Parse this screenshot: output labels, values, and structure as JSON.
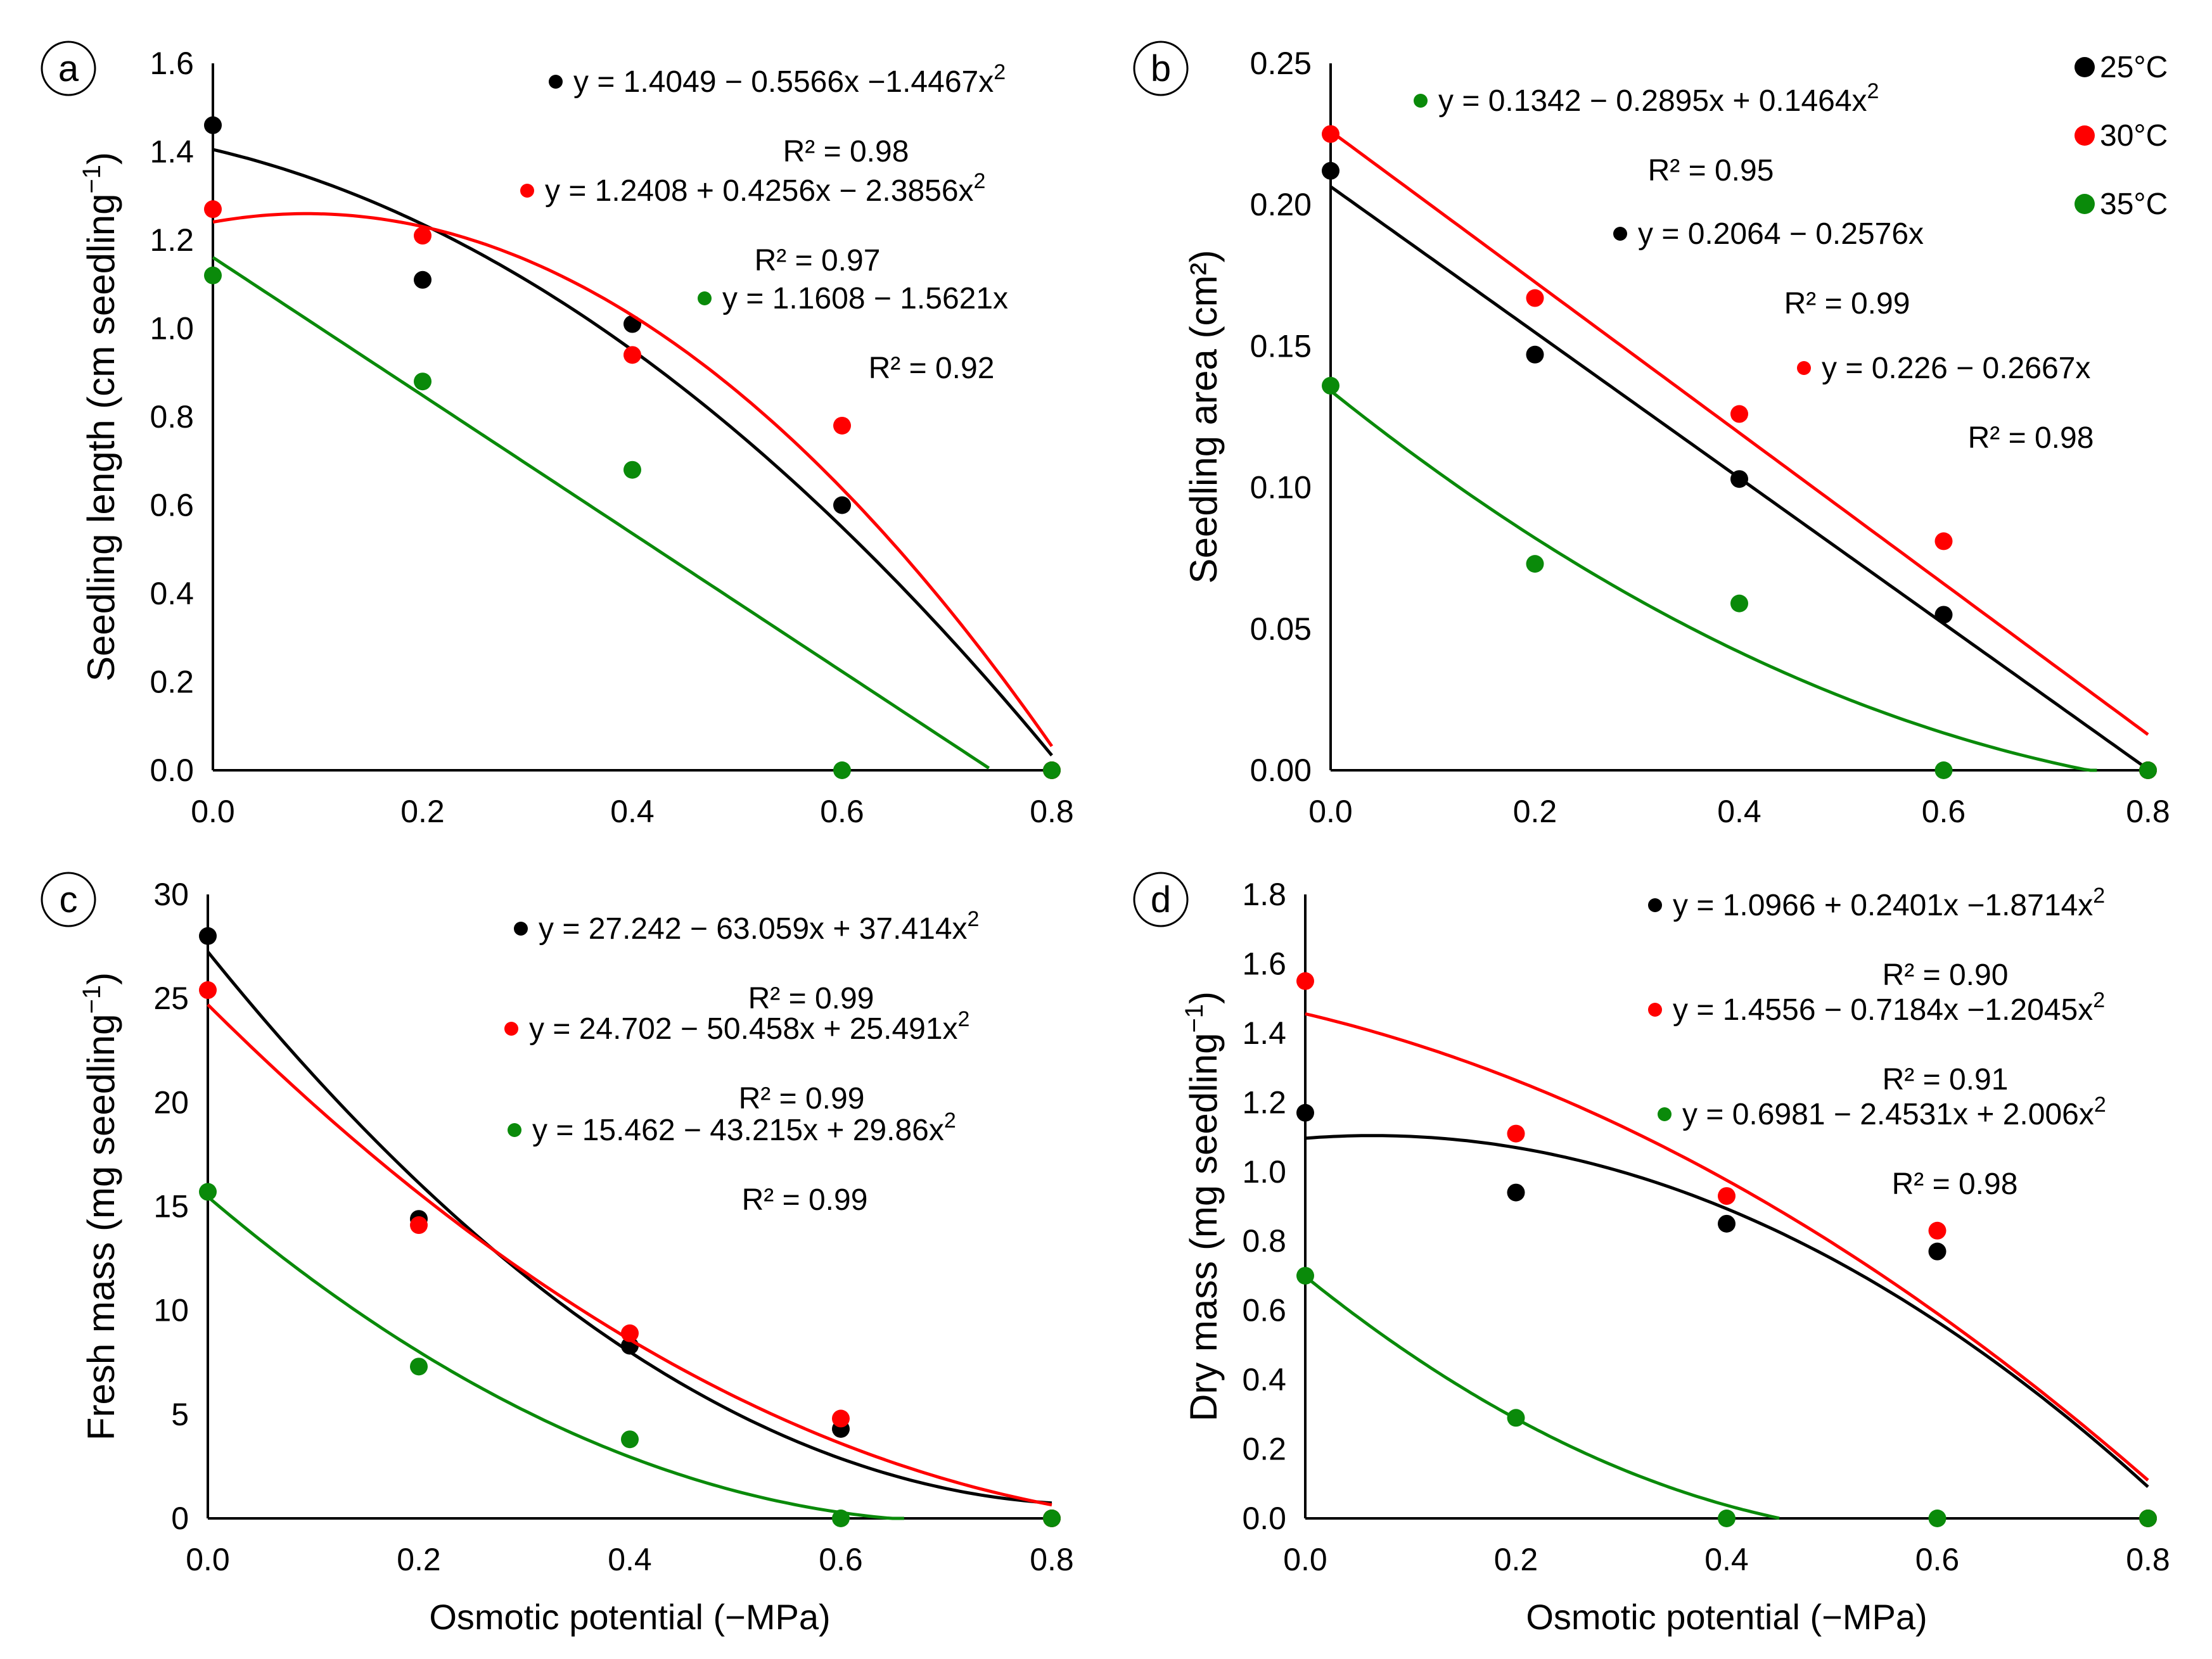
{
  "figure": {
    "colors": {
      "25C": "#000000",
      "30C": "#ff0000",
      "35C": "#0a8a0a"
    },
    "legend": [
      {
        "key": "25C",
        "label": "25°C"
      },
      {
        "key": "30C",
        "label": "30°C"
      },
      {
        "key": "35C",
        "label": "35°C"
      }
    ]
  },
  "chart_data": [
    {
      "panel": "a",
      "type": "scatter",
      "xlabel": "",
      "ylabel": "Seedling length (cm seedling",
      "ylabel_sup": "−1",
      "ylabel_tail": ")",
      "x": [
        0.0,
        0.2,
        0.4,
        0.6,
        0.8
      ],
      "xticks": [
        "0.0",
        "0.2",
        "0.4",
        "0.6",
        "0.8"
      ],
      "xlim": [
        0,
        0.8
      ],
      "ylim": [
        0,
        1.6
      ],
      "yticks": [
        "0.0",
        "0.2",
        "0.4",
        "0.6",
        "0.8",
        "1.0",
        "1.2",
        "1.4",
        "1.6"
      ],
      "series": [
        {
          "name": "25°C",
          "key": "25C",
          "values": [
            1.46,
            1.11,
            1.01,
            0.6,
            0.0
          ],
          "fit": [
            1.4049,
            -0.5566,
            -1.4467
          ],
          "fit_xmax": 0.8,
          "equation": "y = 1.4049 − 0.5566x −1.4467x",
          "eq_sup": "2",
          "r2": "R² = 0.98"
        },
        {
          "name": "30°C",
          "key": "30C",
          "values": [
            1.27,
            1.21,
            0.94,
            0.78,
            0.0
          ],
          "fit": [
            1.2408,
            0.4256,
            -2.3856
          ],
          "fit_xmax": 0.8,
          "equation": "y = 1.2408 + 0.4256x − 2.3856x",
          "eq_sup": "2",
          "r2": "R² = 0.97"
        },
        {
          "name": "35°C",
          "key": "35C",
          "values": [
            1.12,
            0.88,
            0.68,
            0.0,
            0.0
          ],
          "fit": [
            1.1608,
            -1.5621,
            0
          ],
          "fit_xmax": 0.74,
          "equation": "y = 1.1608 − 1.5621x",
          "eq_sup": "",
          "r2": "R² = 0.92"
        }
      ]
    },
    {
      "panel": "b",
      "type": "scatter",
      "xlabel": "",
      "ylabel": "Seedling area (cm²)",
      "ylabel_sup": "",
      "ylabel_tail": "",
      "x": [
        0.0,
        0.2,
        0.4,
        0.6,
        0.8
      ],
      "xticks": [
        "0.0",
        "0.2",
        "0.4",
        "0.6",
        "0.8"
      ],
      "xlim": [
        0,
        0.8
      ],
      "ylim": [
        0,
        0.25
      ],
      "yticks": [
        "0.00",
        "0.05",
        "0.10",
        "0.15",
        "0.20",
        "0.25"
      ],
      "series": [
        {
          "name": "25°C",
          "key": "25C",
          "values": [
            0.212,
            0.147,
            0.103,
            0.055,
            0.0
          ],
          "fit": [
            0.2064,
            -0.2576,
            0
          ],
          "fit_xmax": 0.8,
          "equation": "y = 0.2064 − 0.2576x",
          "eq_sup": "",
          "r2": "R² = 0.99"
        },
        {
          "name": "30°C",
          "key": "30C",
          "values": [
            0.225,
            0.167,
            0.126,
            0.081,
            0.0
          ],
          "fit": [
            0.226,
            -0.2667,
            0
          ],
          "fit_xmax": 0.8,
          "equation": "y = 0.226 − 0.2667x",
          "eq_sup": "",
          "r2": "R² = 0.98"
        },
        {
          "name": "35°C",
          "key": "35C",
          "values": [
            0.136,
            0.073,
            0.059,
            0.0,
            0.0
          ],
          "fit": [
            0.1342,
            -0.2895,
            0.1464
          ],
          "fit_xmax": 0.75,
          "equation": "y = 0.1342 − 0.2895x +  0.1464x",
          "eq_sup": "2",
          "r2": "R² = 0.95"
        }
      ]
    },
    {
      "panel": "c",
      "type": "scatter",
      "xlabel": "Osmotic potential (−MPa)",
      "ylabel": "Fresh mass (mg seedling",
      "ylabel_sup": "−1",
      "ylabel_tail": ")",
      "x": [
        0.0,
        0.2,
        0.4,
        0.6,
        0.8
      ],
      "xticks": [
        "0.0",
        "0.2",
        "0.4",
        "0.6",
        "0.8"
      ],
      "xlim": [
        0,
        0.8
      ],
      "ylim": [
        0,
        30
      ],
      "yticks": [
        "0",
        "5",
        "10",
        "15",
        "20",
        "25",
        "30"
      ],
      "series": [
        {
          "name": "25°C",
          "key": "25C",
          "values": [
            28.0,
            14.4,
            8.3,
            4.3,
            0.0
          ],
          "fit": [
            27.242,
            -63.059,
            37.414
          ],
          "fit_xmax": 0.8,
          "equation": "y = 27.242 − 63.059x + 37.414x",
          "eq_sup": "2",
          "r2": "R² = 0.99"
        },
        {
          "name": "30°C",
          "key": "30C",
          "values": [
            25.4,
            14.1,
            8.9,
            4.8,
            0.0
          ],
          "fit": [
            24.702,
            -50.458,
            25.491
          ],
          "fit_xmax": 0.8,
          "equation": "y = 24.702 − 50.458x + 25.491x",
          "eq_sup": "2",
          "r2": "R² = 0.99"
        },
        {
          "name": "35°C",
          "key": "35C",
          "values": [
            15.7,
            7.3,
            3.8,
            0.0,
            0.0
          ],
          "fit": [
            15.462,
            -43.215,
            29.86
          ],
          "fit_xmax": 0.66,
          "equation": "y = 15.462 − 43.215x + 29.86x",
          "eq_sup": "2",
          "r2": "R² = 0.99"
        }
      ]
    },
    {
      "panel": "d",
      "type": "scatter",
      "xlabel": "Osmotic potential (−MPa)",
      "ylabel": "Dry mass (mg seedling",
      "ylabel_sup": "−1",
      "ylabel_tail": ")",
      "x": [
        0.0,
        0.2,
        0.4,
        0.6,
        0.8
      ],
      "xticks": [
        "0.0",
        "0.2",
        "0.4",
        "0.6",
        "0.8"
      ],
      "xlim": [
        0,
        0.8
      ],
      "ylim": [
        0,
        1.8
      ],
      "yticks": [
        "0.0",
        "0.2",
        "0.4",
        "0.6",
        "0.8",
        "1.0",
        "1.2",
        "1.4",
        "1.6",
        "1.8"
      ],
      "series": [
        {
          "name": "25°C",
          "key": "25C",
          "values": [
            1.17,
            0.94,
            0.85,
            0.77,
            0.0
          ],
          "fit": [
            1.0966,
            0.2401,
            -1.8714
          ],
          "fit_xmax": 0.8,
          "equation": "y = 1.0966 + 0.2401x −1.8714x",
          "eq_sup": "2",
          "r2": "R² = 0.90"
        },
        {
          "name": "30°C",
          "key": "30C",
          "values": [
            1.55,
            1.11,
            0.93,
            0.83,
            0.0
          ],
          "fit": [
            1.4556,
            -0.7184,
            -1.2045
          ],
          "fit_xmax": 0.8,
          "equation": "y = 1.4556 − 0.7184x −1.2045x",
          "eq_sup": "2",
          "r2": "R² = 0.91"
        },
        {
          "name": "35°C",
          "key": "35C",
          "values": [
            0.7,
            0.29,
            0.0,
            0.0,
            0.0
          ],
          "fit": [
            0.6981,
            -2.4531,
            2.006
          ],
          "fit_xmax": 0.45,
          "equation": "y = 0.6981 − 2.4531x + 2.006x",
          "eq_sup": "2",
          "r2": "R² = 0.98"
        }
      ]
    }
  ]
}
